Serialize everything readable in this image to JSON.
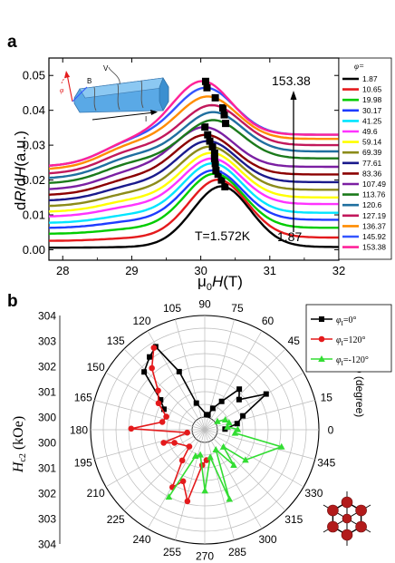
{
  "panel_a": {
    "label": "a",
    "xlabel_prefix": "μ",
    "xlabel_sub": "0",
    "xlabel_main": "H",
    "xlabel_unit": "(T)",
    "ylabel_d1": "d",
    "ylabel_R": "R",
    "ylabel_slash": "/d",
    "ylabel_H": "H",
    "ylabel_unit": "(a.u.)",
    "temperature_text": "T=1.572K",
    "arrow_top_label": "153.38",
    "arrow_bottom_label": "1.87",
    "legend_title": "φ=",
    "inset_labels": {
      "phi": "φ",
      "B": "B",
      "V": "V",
      "I": "I"
    }
  },
  "panel_b": {
    "label": "b",
    "rlabel_main": "H",
    "rlabel_sub": "c2",
    "rlabel_unit": " (kOe)",
    "angle_axis_label": "φ (degree)"
  },
  "colors": {
    "red": "#e41a1c",
    "green": "#33dd33",
    "black": "#000000",
    "orange_curve": "#ff8c00"
  },
  "chart_data": [
    {
      "type": "line",
      "title": "",
      "xlabel": "μ0H(T)",
      "ylabel": "dR/dH(a.u.)",
      "xlim": [
        27.8,
        32
      ],
      "ylim": [
        -0.003,
        0.055
      ],
      "xticks": [
        28,
        29,
        30,
        31,
        32
      ],
      "yticks": [
        0.0,
        0.01,
        0.02,
        0.03,
        0.04,
        0.05
      ],
      "grid": false,
      "legend_placement": "right",
      "series": [
        {
          "name": "1.87",
          "color": "#000000",
          "baseline": 0.0008,
          "peak": 0.0182,
          "center": 30.3,
          "marker_x": 30.35
        },
        {
          "name": "10.65",
          "color": "#e41a1c",
          "baseline": 0.0035,
          "peak": 0.0201,
          "center": 30.25,
          "marker_x": 30.3
        },
        {
          "name": "19.98",
          "color": "#00cc00",
          "baseline": 0.0063,
          "peak": 0.0218,
          "center": 30.2,
          "marker_x": 30.25
        },
        {
          "name": "30.17",
          "color": "#1e3cff",
          "baseline": 0.0086,
          "peak": 0.0228,
          "center": 30.18,
          "marker_x": 30.22
        },
        {
          "name": "41.25",
          "color": "#00e5ff",
          "baseline": 0.0106,
          "peak": 0.0248,
          "center": 30.17,
          "marker_x": 30.21
        },
        {
          "name": "49.6",
          "color": "#ff33ff",
          "baseline": 0.0131,
          "peak": 0.0262,
          "center": 30.16,
          "marker_x": 30.2
        },
        {
          "name": "59.14",
          "color": "#ffff00",
          "baseline": 0.015,
          "peak": 0.0278,
          "center": 30.15,
          "marker_x": 30.2
        },
        {
          "name": "69.39",
          "color": "#8b8b1a",
          "baseline": 0.0172,
          "peak": 0.0296,
          "center": 30.13,
          "marker_x": 30.17
        },
        {
          "name": "77.61",
          "color": "#1a1a8c",
          "baseline": 0.0194,
          "peak": 0.0312,
          "center": 30.1,
          "marker_x": 30.13
        },
        {
          "name": "83.36",
          "color": "#8b0000",
          "baseline": 0.0216,
          "peak": 0.033,
          "center": 30.07,
          "marker_x": 30.1
        },
        {
          "name": "107.49",
          "color": "#7b1fa2",
          "baseline": 0.0238,
          "peak": 0.0352,
          "center": 30.05,
          "marker_x": 30.06
        },
        {
          "name": "113.76",
          "color": "#1b7a1b",
          "baseline": 0.0262,
          "peak": 0.0372,
          "center": 30.18,
          "marker_x": 30.36
        },
        {
          "name": "120.6",
          "color": "#1f6f9f",
          "baseline": 0.0282,
          "peak": 0.0395,
          "center": 30.18,
          "marker_x": 30.34
        },
        {
          "name": "127.19",
          "color": "#c2185b",
          "baseline": 0.03,
          "peak": 0.0415,
          "center": 30.16,
          "marker_x": 30.32
        },
        {
          "name": "136.37",
          "color": "#ff8c00",
          "baseline": 0.0318,
          "peak": 0.044,
          "center": 30.1,
          "marker_x": 30.21
        },
        {
          "name": "145.92",
          "color": "#3355ff",
          "baseline": 0.033,
          "peak": 0.0465,
          "center": 30.07,
          "marker_x": 30.09
        },
        {
          "name": "153.38",
          "color": "#ff2299",
          "baseline": 0.033,
          "peak": 0.0484,
          "center": 30.02,
          "marker_x": 30.07
        }
      ]
    },
    {
      "type": "scatter",
      "subtype": "polar",
      "title": "",
      "radial_label": "Hc2 (kOe)",
      "angular_label": "φ (degree)",
      "rlim": [
        299.5,
        304.0
      ],
      "radial_ticks": [
        300,
        301,
        302,
        303,
        304
      ],
      "angle_ticks": [
        0,
        15,
        30,
        45,
        60,
        75,
        90,
        105,
        120,
        135,
        150,
        165,
        180,
        195,
        210,
        225,
        240,
        255,
        270,
        285,
        300,
        315,
        330,
        345
      ],
      "grid": true,
      "legend_placement": "top-right",
      "series": [
        {
          "name": "φ=0°",
          "legend_main": "φ",
          "legend_sub": "I",
          "legend_value": "=0°",
          "color": "#000000",
          "marker": "square",
          "points": [
            [
              1.87,
              300.3
            ],
            [
              10.65,
              300.8
            ],
            [
              19.98,
              301.1
            ],
            [
              30.17,
              302.3
            ],
            [
              41.25,
              301.3
            ],
            [
              49.6,
              301.6
            ],
            [
              59.14,
              300.8
            ],
            [
              69.39,
              300.4
            ],
            [
              77.61,
              300.1
            ],
            [
              83.36,
              300.1
            ],
            [
              107.49,
              300.6
            ],
            [
              113.76,
              302.0
            ],
            [
              120.6,
              303.3
            ],
            [
              127.19,
              303.1
            ],
            [
              136.37,
              302.8
            ],
            [
              145.92,
              301.6
            ],
            [
              153.38,
              301.3
            ]
          ]
        },
        {
          "name": "φ=120°",
          "legend_main": "φ",
          "legend_sub": "I",
          "legend_value": "=120°",
          "color": "#e41a1c",
          "marker": "circle",
          "points": [
            [
              121.87,
              303.3
            ],
            [
              130.65,
              302.7
            ],
            [
              139.98,
              301.9
            ],
            [
              150.17,
              301.6
            ],
            [
              161.25,
              301.1
            ],
            [
              169.6,
              301.2
            ],
            [
              179.14,
              302.4
            ],
            [
              189.39,
              300.2
            ],
            [
              197.61,
              301.2
            ],
            [
              203.36,
              300.8
            ],
            [
              227.49,
              300.4
            ],
            [
              233.76,
              301.0
            ],
            [
              240.6,
              302.1
            ],
            [
              247.19,
              301.7
            ],
            [
              256.37,
              302.4
            ],
            [
              265.92,
              300.9
            ],
            [
              273.38,
              300.7
            ]
          ]
        },
        {
          "name": "φ=-120°",
          "legend_main": "φ",
          "legend_sub": "I",
          "legend_value": "=-120°",
          "color": "#33dd33",
          "marker": "triangle",
          "points": [
            [
              241.87,
              302.5
            ],
            [
              250.65,
              300.6
            ],
            [
              259.98,
              300.5
            ],
            [
              270.17,
              301.9
            ],
            [
              281.25,
              300.6
            ],
            [
              289.6,
              302.4
            ],
            [
              299.14,
              300.4
            ],
            [
              309.39,
              301.3
            ],
            [
              317.61,
              300.5
            ],
            [
              323.36,
              301.5
            ],
            [
              347.49,
              302.6
            ],
            [
              353.76,
              300.7
            ],
            [
              0.6,
              300.8
            ],
            [
              7.19,
              300.4
            ],
            [
              16.37,
              300.5
            ],
            [
              25.92,
              300.4
            ],
            [
              33.38,
              300.1
            ]
          ]
        }
      ]
    }
  ]
}
